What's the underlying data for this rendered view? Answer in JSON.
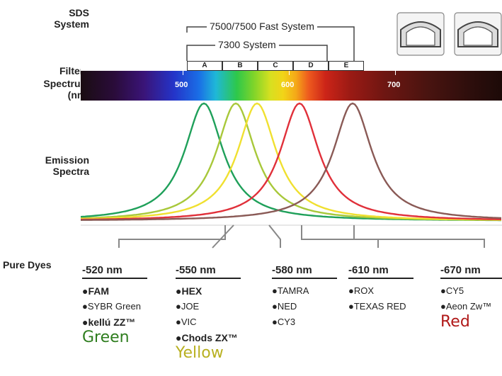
{
  "labels": {
    "sds_system": [
      "SDS",
      "System"
    ],
    "filters": "Filters",
    "spectrum": [
      "Spectrum",
      "(nm)"
    ],
    "emission": [
      "Emission",
      "Spectra"
    ],
    "pure_dyes": "Pure Dyes"
  },
  "systems": {
    "fast_system": "7500/7500 Fast System",
    "system_7300": "7300 System"
  },
  "filters": [
    "A",
    "B",
    "C",
    "D",
    "E"
  ],
  "spectrum_ticks": [
    "500",
    "600",
    "700"
  ],
  "emission_curves": [
    {
      "peak_nm": 520,
      "color": "#1fa05a"
    },
    {
      "peak_nm": 550,
      "color": "#a8c83a"
    },
    {
      "peak_nm": 570,
      "color": "#f0e030"
    },
    {
      "peak_nm": 610,
      "color": "#e0303a"
    },
    {
      "peak_nm": 660,
      "color": "#8a5a56"
    }
  ],
  "dye_groups": [
    {
      "heading": "-520 nm",
      "items": [
        {
          "text": "●FAM",
          "bold": true
        },
        {
          "text": "●SYBR Green",
          "bold": false
        },
        {
          "text": "●kellú ZZ™",
          "bold": true
        }
      ],
      "color_word": "Green",
      "color_word_color": "#2e7d1e"
    },
    {
      "heading": "-550 nm",
      "items": [
        {
          "text": "●HEX",
          "bold": true
        },
        {
          "text": "●JOE",
          "bold": false
        },
        {
          "text": "●VIC",
          "bold": false
        },
        {
          "text": "●Chods ZX™",
          "bold": true
        }
      ],
      "color_word": "Yellow",
      "color_word_color": "#b8b020"
    },
    {
      "heading": "-580 nm",
      "items": [
        {
          "text": "●TAMRA",
          "bold": false
        },
        {
          "text": "●NED",
          "bold": false
        },
        {
          "text": "●CY3",
          "bold": false
        }
      ]
    },
    {
      "heading": "-610 nm",
      "items": [
        {
          "text": "●ROX",
          "bold": false
        },
        {
          "text": "●TEXAS RED",
          "bold": false
        }
      ]
    },
    {
      "heading": "-670 nm",
      "items": [
        {
          "text": "●CY5",
          "bold": false
        },
        {
          "text": "●Aeon Zw™",
          "bold": false
        }
      ],
      "color_word": "Red",
      "color_word_color": "#b01818"
    }
  ]
}
